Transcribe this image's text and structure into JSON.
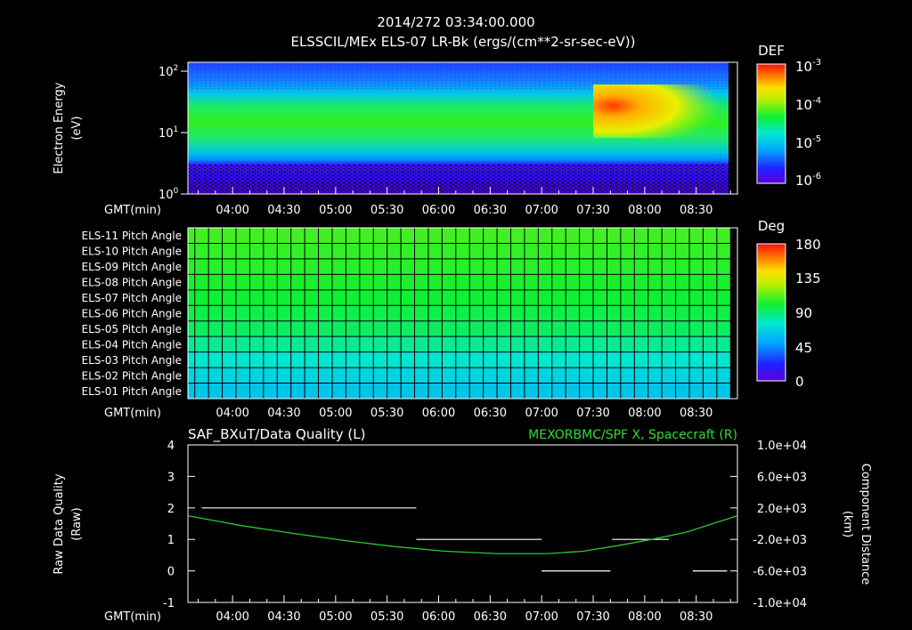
{
  "header": {
    "timestamp": "2014/272 03:34:00.000",
    "title": "ELSSCIL/MEx ELS-07 LR-Bk  (ergs/(cm**2-sr-sec-eV))"
  },
  "time_axis": {
    "label": "GMT(min)",
    "ticks": [
      "04:00",
      "04:30",
      "05:00",
      "05:30",
      "06:00",
      "06:30",
      "07:00",
      "07:30",
      "08:00",
      "08:30"
    ]
  },
  "chart_data": [
    {
      "type": "heatmap",
      "name": "spectrogram",
      "title": "ELSSCIL/MEx ELS-07 LR-Bk  (ergs/(cm**2-sr-sec-eV))",
      "ylabel": "Electron Energy",
      "yunit": "(eV)",
      "yscale": "log",
      "ylim": [
        1,
        150
      ],
      "ytick_base": "10",
      "ytick_exponents": [
        "0",
        "1",
        "2"
      ],
      "xlim": [
        "03:34",
        "08:54"
      ],
      "colorbar": {
        "label": "DEF",
        "scale": "log",
        "range": [
          1e-06,
          0.001
        ],
        "tick_base": "10",
        "tick_exponents": [
          "-3",
          "-4",
          "-5",
          "-6"
        ]
      }
    },
    {
      "type": "heatmap",
      "name": "pitch-angle",
      "rows": [
        "ELS-11 Pitch Angle",
        "ELS-10 Pitch Angle",
        "ELS-09 Pitch Angle",
        "ELS-08 Pitch Angle",
        "ELS-07 Pitch Angle",
        "ELS-06 Pitch Angle",
        "ELS-05 Pitch Angle",
        "ELS-04 Pitch Angle",
        "ELS-03 Pitch Angle",
        "ELS-02 Pitch Angle",
        "ELS-01 Pitch Angle"
      ],
      "values_deg": [
        108,
        106,
        104,
        102,
        100,
        97,
        93,
        85,
        75,
        68,
        62
      ],
      "colorbar": {
        "label": "Deg",
        "ticks": [
          "180",
          "135",
          "90",
          "45",
          "0"
        ]
      }
    },
    {
      "type": "line",
      "name": "quality-and-position",
      "title_left": "SAF_BXuT/Data Quality (L)",
      "title_right": "MEXORBMC/SPF X, Spacecraft (R)",
      "ylabel_left": "Raw Data Quality",
      "ylabel_left_unit": "(Raw)",
      "ylim_left": [
        -1,
        4
      ],
      "yticks_left": [
        "4",
        "3",
        "2",
        "1",
        "0",
        "-1"
      ],
      "ylabel_right": "Component Distance",
      "ylabel_right_unit": "(km)",
      "ylim_right": [
        -10000,
        10000
      ],
      "yticks_right": [
        "1.0e+04",
        "6.0e+03",
        "2.0e+03",
        "-2.0e+03",
        "-6.0e+03",
        "-1.0e+04"
      ],
      "quality_segments": [
        {
          "start": "03:42",
          "end": "05:47",
          "value": 2
        },
        {
          "start": "05:47",
          "end": "07:00",
          "value": 1
        },
        {
          "start": "07:00",
          "end": "07:40",
          "value": 0
        },
        {
          "start": "07:41",
          "end": "08:14",
          "value": 1
        },
        {
          "start": "08:28",
          "end": "08:48",
          "value": 0
        }
      ],
      "series": [
        {
          "color": "#2fc82f",
          "x": [
            "03:34",
            "04:04",
            "04:34",
            "05:04",
            "05:34",
            "06:04",
            "06:34",
            "07:04",
            "07:24",
            "07:44",
            "08:04",
            "08:24",
            "08:44",
            "08:54"
          ],
          "values": [
            1000,
            -200,
            -1200,
            -2100,
            -2900,
            -3500,
            -3800,
            -3800,
            -3500,
            -2800,
            -2000,
            -1100,
            300,
            1000
          ]
        }
      ]
    }
  ]
}
